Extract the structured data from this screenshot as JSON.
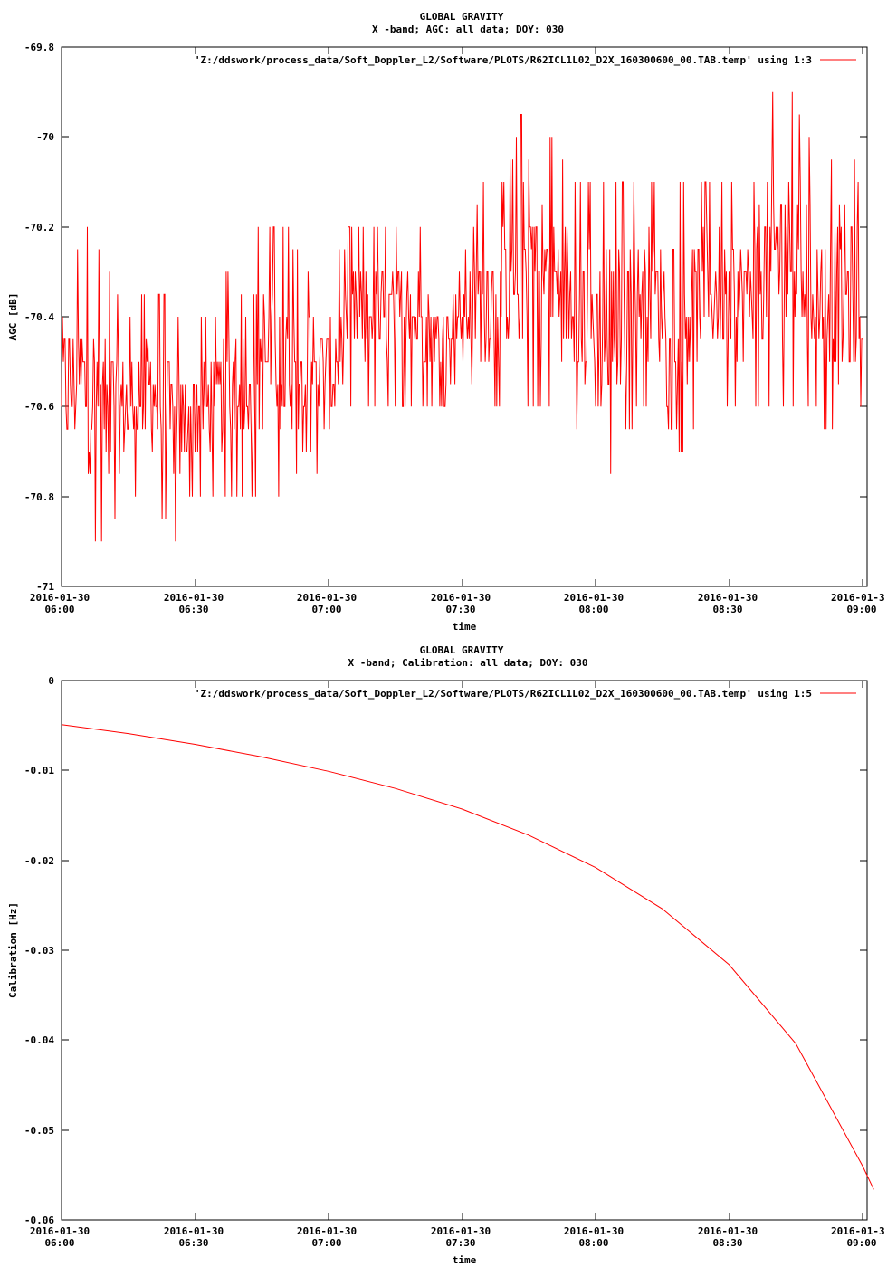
{
  "charts": [
    {
      "title": "GLOBAL GRAVITY",
      "subtitle": "X -band; AGC: all data; DOY: 030",
      "legend": "'Z:/ddswork/process_data/Soft_Doppler_L2/Software/PLOTS/R62ICL1L02_D2X_160300600_00.TAB.temp' using 1:3",
      "xlabel": "time",
      "ylabel": "AGC [dB]",
      "yticks": [
        "-69.8",
        "-70",
        "-70.2",
        "-70.4",
        "-70.6",
        "-70.8",
        "-71"
      ],
      "xticks_date": [
        "2016-01-30",
        "2016-01-30",
        "2016-01-30",
        "2016-01-30",
        "2016-01-30",
        "2016-01-30",
        "2016-01-3"
      ],
      "xticks_time": [
        "06:00",
        "06:30",
        "07:00",
        "07:30",
        "08:00",
        "08:30",
        "09:00"
      ]
    },
    {
      "title": "GLOBAL GRAVITY",
      "subtitle": "X -band; Calibration: all data; DOY: 030",
      "legend": "'Z:/ddswork/process_data/Soft_Doppler_L2/Software/PLOTS/R62ICL1L02_D2X_160300600_00.TAB.temp' using 1:5",
      "xlabel": "time",
      "ylabel": "Calibration [Hz]",
      "yticks": [
        "0",
        "-0.01",
        "-0.02",
        "-0.03",
        "-0.04",
        "-0.05",
        "-0.06"
      ],
      "xticks_date": [
        "2016-01-30",
        "2016-01-30",
        "2016-01-30",
        "2016-01-30",
        "2016-01-30",
        "2016-01-30",
        "2016-01-3"
      ],
      "xticks_time": [
        "06:00",
        "06:30",
        "07:00",
        "07:30",
        "08:00",
        "08:30",
        "09:00"
      ]
    }
  ],
  "colors": {
    "series": "#ff0000",
    "axes": "#000000",
    "background": "#ffffff"
  },
  "chart_data": [
    {
      "type": "line",
      "title": "GLOBAL GRAVITY",
      "subtitle": "X -band; AGC: all data; DOY: 030",
      "xlabel": "time",
      "ylabel": "AGC [dB]",
      "ylim": [
        -71,
        -69.8
      ],
      "xlim": [
        "2016-01-30 06:00",
        "2016-01-30 09:00"
      ],
      "grid": false,
      "legend_position": "top-right",
      "series": [
        {
          "name": "'Z:/ddswork/process_data/Soft_Doppler_L2/Software/PLOTS/R62ICL1L02_D2X_160300600_00.TAB.temp' using 1:3",
          "x": [
            "2016-01-30 06:00",
            "2016-01-30 06:05",
            "2016-01-30 06:10",
            "2016-01-30 06:15",
            "2016-01-30 06:20",
            "2016-01-30 06:25",
            "2016-01-30 06:30",
            "2016-01-30 06:35",
            "2016-01-30 06:40",
            "2016-01-30 06:45",
            "2016-01-30 06:50",
            "2016-01-30 06:55",
            "2016-01-30 07:00",
            "2016-01-30 07:05",
            "2016-01-30 07:10",
            "2016-01-30 07:15",
            "2016-01-30 07:20",
            "2016-01-30 07:25",
            "2016-01-30 07:30",
            "2016-01-30 07:35",
            "2016-01-30 07:40",
            "2016-01-30 07:45",
            "2016-01-30 07:50",
            "2016-01-30 07:55",
            "2016-01-30 08:00",
            "2016-01-30 08:05",
            "2016-01-30 08:10",
            "2016-01-30 08:15",
            "2016-01-30 08:20",
            "2016-01-30 08:25",
            "2016-01-30 08:30",
            "2016-01-30 08:35",
            "2016-01-30 08:40",
            "2016-01-30 08:45",
            "2016-01-30 08:50",
            "2016-01-30 08:55",
            "2016-01-30 09:00"
          ],
          "y_min": [
            -70.8,
            -70.9,
            -70.9,
            -70.8,
            -70.8,
            -70.9,
            -70.8,
            -70.8,
            -70.8,
            -70.8,
            -70.8,
            -70.7,
            -70.8,
            -70.6,
            -70.6,
            -70.6,
            -70.6,
            -70.6,
            -70.5,
            -70.6,
            -70.6,
            -70.6,
            -70.6,
            -70.6,
            -70.8,
            -70.7,
            -70.6,
            -70.6,
            -70.7,
            -70.6,
            -70.6,
            -70.6,
            -70.6,
            -70.6,
            -70.6,
            -70.7,
            -70.6
          ],
          "y_max": [
            -70.3,
            -70.2,
            -70.3,
            -70.4,
            -70.3,
            -70.4,
            -70.4,
            -70.4,
            -70.2,
            -70.2,
            -70.2,
            -70.3,
            -70.3,
            -70.2,
            -70.2,
            -70.2,
            -70.2,
            -70.3,
            -70.3,
            -70.1,
            -70.1,
            -69.9,
            -70.0,
            -70.1,
            -70.1,
            -70.1,
            -70.1,
            -70.1,
            -70.1,
            -70.1,
            -70.1,
            -70.1,
            -69.9,
            -69.9,
            -70.1,
            -70.0,
            -70.1
          ]
        }
      ]
    },
    {
      "type": "line",
      "title": "GLOBAL GRAVITY",
      "subtitle": "X -band; Calibration: all data; DOY: 030",
      "xlabel": "time",
      "ylabel": "Calibration [Hz]",
      "ylim": [
        -0.06,
        0
      ],
      "xlim": [
        "2016-01-30 06:00",
        "2016-01-30 09:00"
      ],
      "grid": false,
      "legend_position": "top-right",
      "series": [
        {
          "name": "'Z:/ddswork/process_data/Soft_Doppler_L2/Software/PLOTS/R62ICL1L02_D2X_160300600_00.TAB.temp' using 1:5",
          "x": [
            "2016-01-30 06:00",
            "2016-01-30 06:15",
            "2016-01-30 06:30",
            "2016-01-30 06:45",
            "2016-01-30 07:00",
            "2016-01-30 07:15",
            "2016-01-30 07:30",
            "2016-01-30 07:45",
            "2016-01-30 08:00",
            "2016-01-30 08:15",
            "2016-01-30 08:30",
            "2016-01-30 08:45",
            "2016-01-30 09:00"
          ],
          "y": [
            -0.0049,
            -0.0059,
            -0.0071,
            -0.0085,
            -0.0101,
            -0.012,
            -0.0143,
            -0.0172,
            -0.0208,
            -0.0254,
            -0.0316,
            -0.0404,
            -0.054
          ]
        }
      ]
    }
  ]
}
